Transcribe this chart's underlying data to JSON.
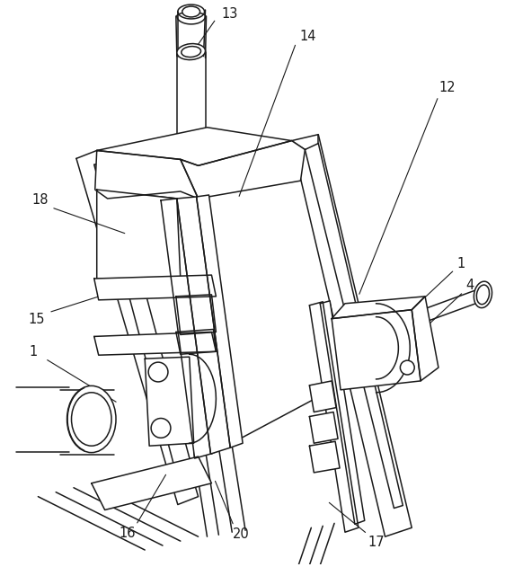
{
  "figure_width": 5.62,
  "figure_height": 6.31,
  "dpi": 100,
  "bg_color": "#ffffff",
  "line_color": "#1a1a1a",
  "line_width": 1.1,
  "thin_lw": 0.7,
  "label_fontsize": 10.5
}
